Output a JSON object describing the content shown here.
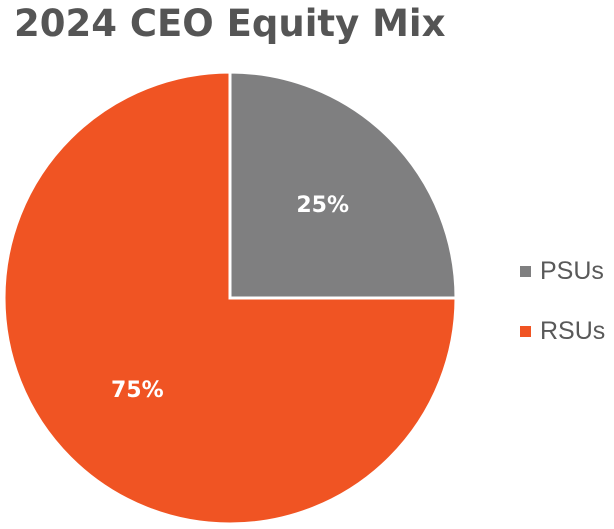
{
  "chart_data": {
    "type": "pie",
    "title": "2024 CEO Equity Mix",
    "start_angle_deg": 0,
    "direction": "clockwise",
    "slices": [
      {
        "label": "PSUs",
        "value": 25,
        "display": "25%",
        "color": "#7f7f80"
      },
      {
        "label": "RSUs",
        "value": 75,
        "display": "75%",
        "color": "#f05423"
      }
    ],
    "legend": {
      "position": "right",
      "entries": [
        "PSUs",
        "RSUs"
      ]
    },
    "data_label_color": "#ffffff",
    "separator_color": "#ffffff"
  }
}
